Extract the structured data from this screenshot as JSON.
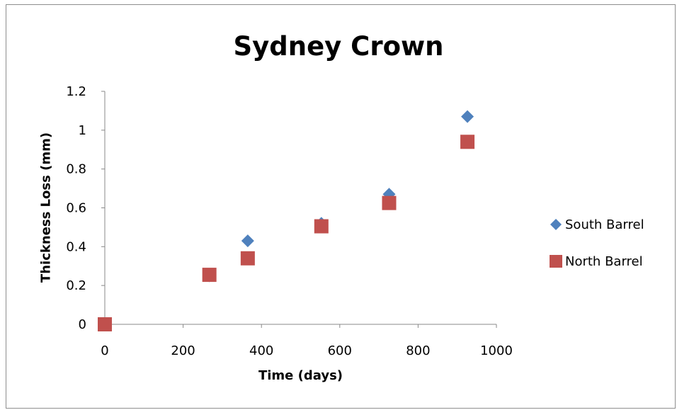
{
  "chart_data": {
    "type": "scatter",
    "title": "Sydney Crown",
    "xlabel": "Time (days)",
    "ylabel": "Thickness Loss (mm)",
    "xlim": [
      0,
      1000
    ],
    "ylim": [
      0,
      1.2
    ],
    "xticks": [
      "0",
      "200",
      "400",
      "600",
      "800",
      "1000"
    ],
    "yticks": [
      "0",
      "0.2",
      "0.4",
      "0.6",
      "0.8",
      "1",
      "1.2"
    ],
    "grid": false,
    "legend_position": "right",
    "series": [
      {
        "name": "South Barrel",
        "marker": "diamond",
        "color": "#4f81bd",
        "x": [
          0,
          267,
          365,
          553,
          726,
          926
        ],
        "y": [
          0,
          0.25,
          0.43,
          0.52,
          0.67,
          1.07
        ]
      },
      {
        "name": "North Barrel",
        "marker": "square",
        "color": "#c0504d",
        "x": [
          0,
          267,
          365,
          553,
          726,
          926
        ],
        "y": [
          0,
          0.255,
          0.34,
          0.505,
          0.625,
          0.94
        ]
      }
    ]
  }
}
